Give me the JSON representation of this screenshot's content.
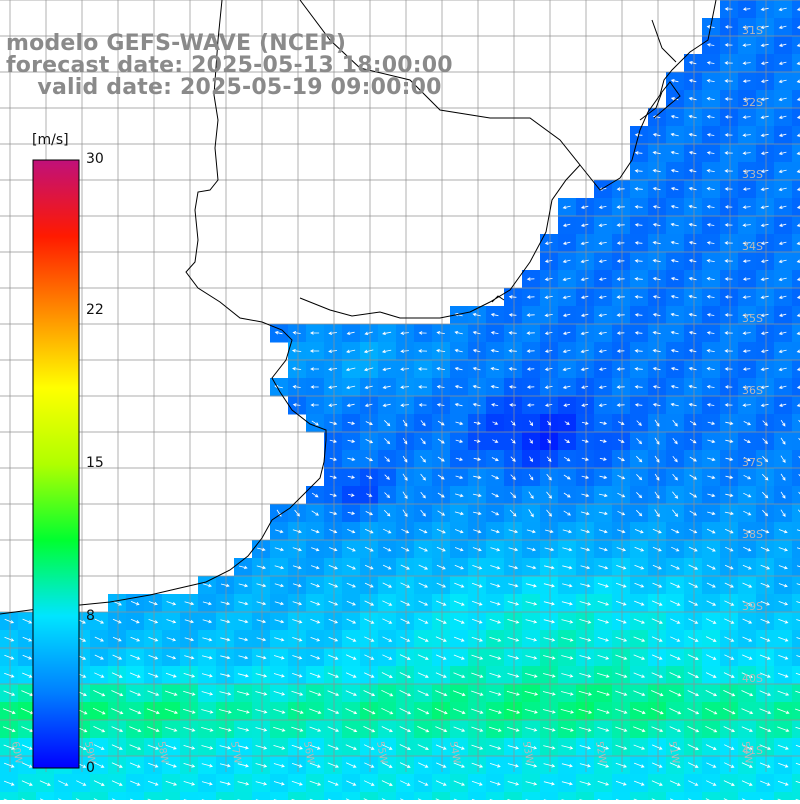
{
  "header": {
    "line1": "modelo GEFS-WAVE (NCEP)",
    "line2": "forecast date: 2025-05-13 18:00:00",
    "line3": "    valid date: 2025-05-19 09:00:00"
  },
  "colorbar": {
    "unit": "[m/s]",
    "ticks": [
      "30",
      "22",
      "15",
      "8",
      "0"
    ],
    "tick_values": [
      30,
      22,
      15,
      8,
      0
    ],
    "min": 0,
    "max": 30,
    "colors": [
      "#0000ff",
      "#0080ff",
      "#00e5ff",
      "#00ff30",
      "#b0ff00",
      "#ffff00",
      "#ff8c00",
      "#ff1a00",
      "#c0107a"
    ]
  },
  "map": {
    "lat_labels": [
      "31S",
      "32S",
      "33S",
      "34S",
      "35S",
      "36S",
      "37S",
      "38S",
      "39S",
      "40S",
      "41S"
    ],
    "lon_labels": [
      "60W",
      "59W",
      "58W",
      "57W",
      "56W",
      "55W",
      "54W",
      "53W",
      "52W",
      "51W",
      "50W"
    ],
    "land_color": "#ffffff",
    "grid_color": "#909090",
    "coast_color": "#000000",
    "arrow_color": "#ffffff"
  }
}
